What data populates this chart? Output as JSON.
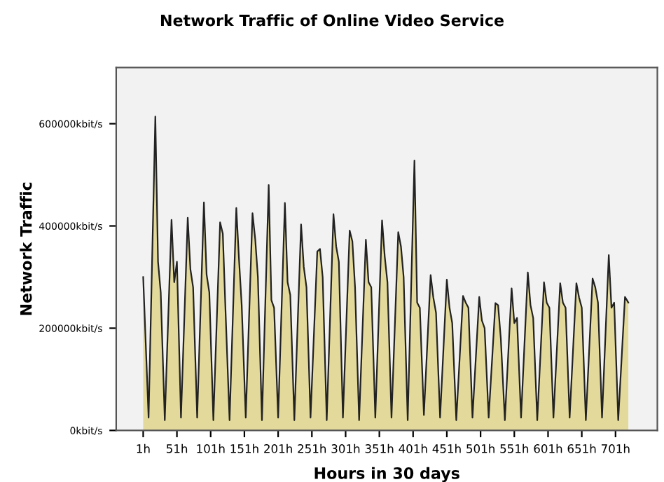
{
  "chart_data": {
    "type": "area",
    "title": "Network Traffic of Online Video Service",
    "xlabel": "Hours in 30 days",
    "ylabel": "Network Traffic",
    "xlim": [
      -39,
      763
    ],
    "ylim": [
      0,
      710000
    ],
    "xticks": [
      {
        "value": 1,
        "label": "1h"
      },
      {
        "value": 51,
        "label": "51h"
      },
      {
        "value": 101,
        "label": "101h"
      },
      {
        "value": 151,
        "label": "151h"
      },
      {
        "value": 201,
        "label": "201h"
      },
      {
        "value": 251,
        "label": "251h"
      },
      {
        "value": 301,
        "label": "301h"
      },
      {
        "value": 351,
        "label": "351h"
      },
      {
        "value": 401,
        "label": "401h"
      },
      {
        "value": 451,
        "label": "451h"
      },
      {
        "value": 501,
        "label": "501h"
      },
      {
        "value": 551,
        "label": "551h"
      },
      {
        "value": 601,
        "label": "601h"
      },
      {
        "value": 651,
        "label": "651h"
      },
      {
        "value": 701,
        "label": "701h"
      }
    ],
    "yticks": [
      {
        "value": 0,
        "label": "0kbit/s"
      },
      {
        "value": 200000,
        "label": "200000kbit/s"
      },
      {
        "value": 400000,
        "label": "400000kbit/s"
      },
      {
        "value": 600000,
        "label": "600000kbit/s"
      }
    ],
    "grid": false,
    "series": [
      {
        "color": "#e3d99a",
        "x": [
          1,
          9,
          19,
          23,
          27,
          33,
          43,
          47,
          51,
          57,
          67,
          71,
          75,
          81,
          91,
          95,
          99,
          105,
          115,
          119,
          123,
          129,
          139,
          143,
          147,
          153,
          163,
          167,
          171,
          177,
          187,
          191,
          195,
          201,
          211,
          215,
          219,
          225,
          235,
          239,
          243,
          249,
          259,
          263,
          267,
          273,
          283,
          287,
          291,
          297,
          307,
          311,
          315,
          321,
          331,
          335,
          339,
          345,
          355,
          359,
          363,
          369,
          379,
          383,
          387,
          393,
          403,
          407,
          411,
          417,
          427,
          431,
          435,
          441,
          451,
          455,
          459,
          465,
          475,
          479,
          483,
          489,
          499,
          503,
          507,
          513,
          523,
          527,
          531,
          537,
          547,
          551,
          555,
          561,
          571,
          575,
          579,
          585,
          595,
          599,
          603,
          609,
          619,
          623,
          627,
          633,
          643,
          647,
          651,
          657,
          667,
          671,
          675,
          681,
          691,
          695,
          699,
          705,
          715,
          720
        ],
        "values": [
          300000,
          25000,
          614000,
          330000,
          270000,
          20000,
          412000,
          290000,
          330000,
          25000,
          416000,
          315000,
          280000,
          25000,
          446000,
          305000,
          270000,
          20000,
          407000,
          385000,
          235000,
          20000,
          435000,
          335000,
          245000,
          25000,
          425000,
          375000,
          300000,
          20000,
          480000,
          255000,
          240000,
          25000,
          445000,
          290000,
          265000,
          20000,
          403000,
          320000,
          280000,
          25000,
          350000,
          355000,
          300000,
          20000,
          423000,
          360000,
          330000,
          25000,
          391000,
          370000,
          280000,
          20000,
          373000,
          290000,
          280000,
          25000,
          411000,
          340000,
          290000,
          25000,
          388000,
          360000,
          300000,
          20000,
          528000,
          250000,
          240000,
          30000,
          304000,
          260000,
          230000,
          25000,
          295000,
          240000,
          210000,
          20000,
          263000,
          250000,
          240000,
          25000,
          261000,
          215000,
          200000,
          25000,
          249000,
          245000,
          180000,
          20000,
          278000,
          210000,
          220000,
          25000,
          309000,
          245000,
          220000,
          20000,
          290000,
          250000,
          240000,
          25000,
          288000,
          250000,
          240000,
          25000,
          288000,
          260000,
          240000,
          20000,
          297000,
          280000,
          250000,
          25000,
          343000,
          240000,
          250000,
          20000,
          261000,
          250000
        ]
      }
    ]
  }
}
